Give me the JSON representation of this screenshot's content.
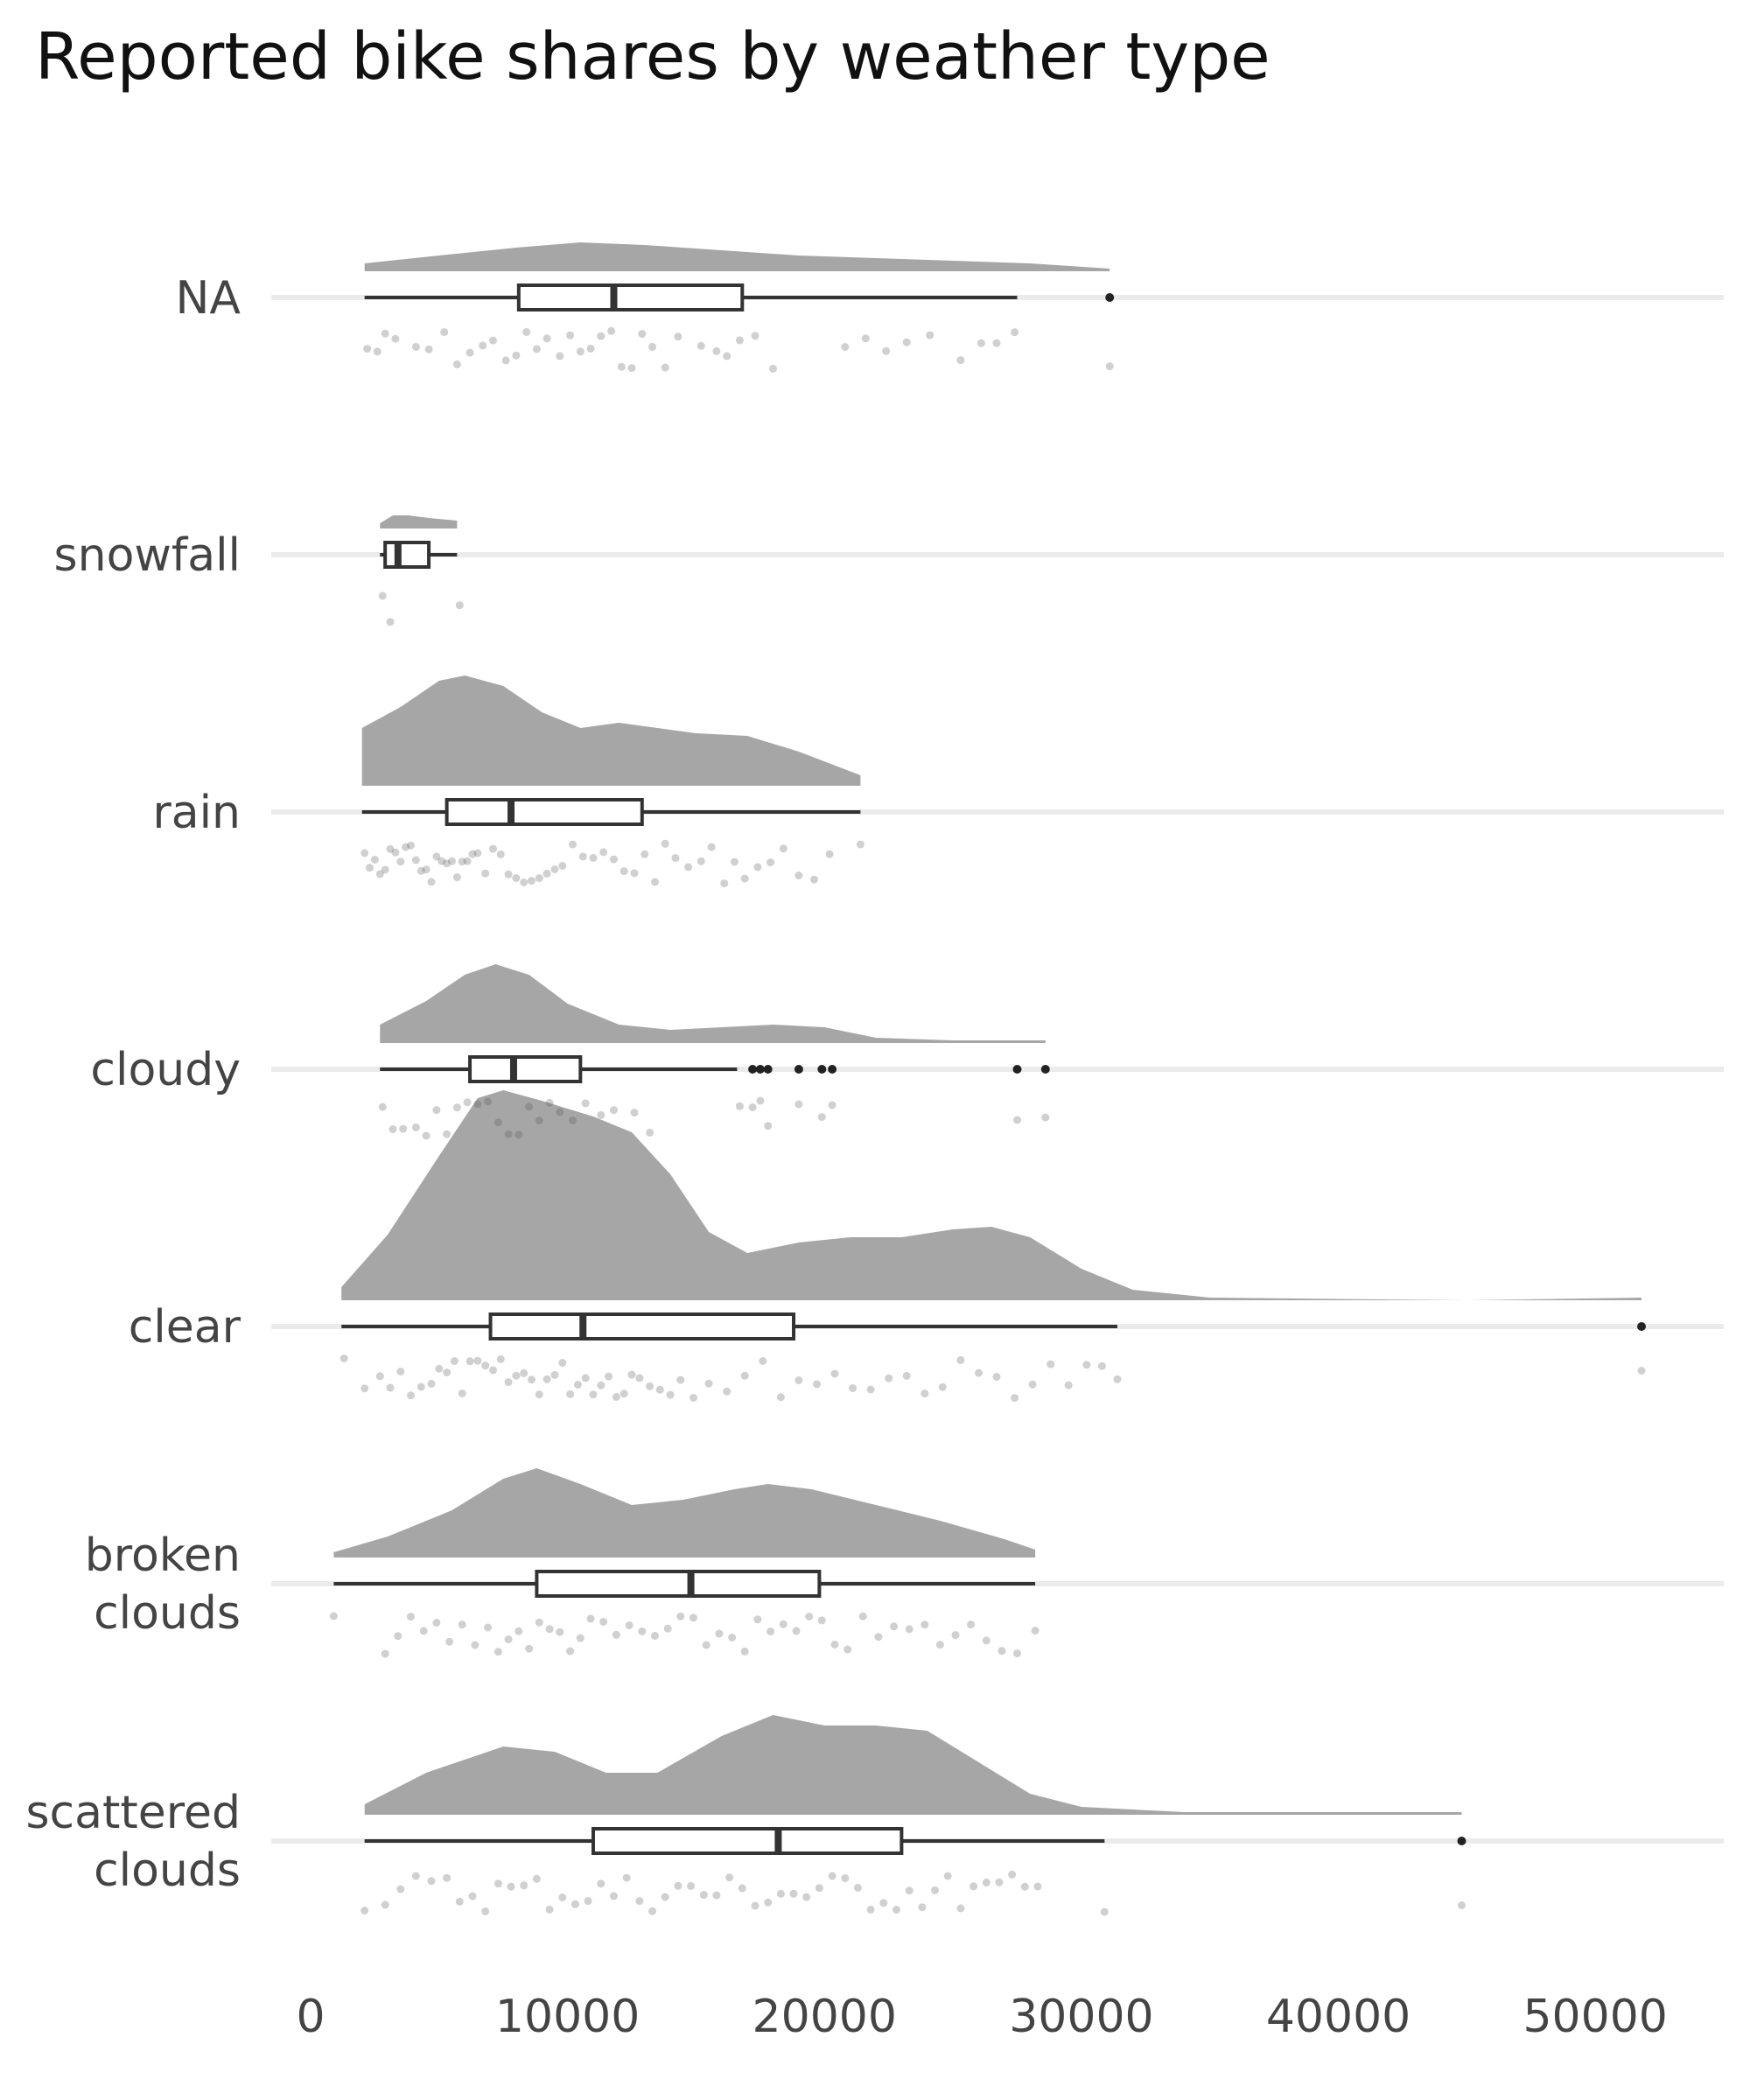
{
  "chart_data": {
    "type": "raincloud",
    "title": "Reported bike shares by weather type",
    "xlabel": "",
    "ylabel": "",
    "xlim": [
      0,
      55000
    ],
    "x_ticks": [
      0,
      10000,
      20000,
      30000,
      40000,
      50000
    ],
    "x_tick_labels": [
      "0",
      "10000",
      "20000",
      "30000",
      "40000",
      "50000"
    ],
    "grid": "horizontal lines at each category",
    "legend": "none",
    "colors": {
      "density": "#a6a6a6",
      "box": "#333333",
      "points": "#555555",
      "grid": "#ebebeb",
      "text": "#444444"
    },
    "series": [
      {
        "category": [
          "NA"
        ],
        "min": 2100,
        "q1": 8100,
        "median": 11800,
        "q3": 16800,
        "whisker_high": 27500,
        "outliers": [
          31100
        ],
        "density": [
          [
            2100,
            0.03
          ],
          [
            5000,
            0.06
          ],
          [
            8000,
            0.09
          ],
          [
            10500,
            0.11
          ],
          [
            13000,
            0.1
          ],
          [
            16000,
            0.08
          ],
          [
            19000,
            0.06
          ],
          [
            22000,
            0.05
          ],
          [
            25000,
            0.04
          ],
          [
            28000,
            0.03
          ],
          [
            31100,
            0.01
          ]
        ],
        "points": [
          2200,
          2600,
          2900,
          3300,
          4100,
          4600,
          5200,
          5700,
          6200,
          6700,
          7100,
          7600,
          8000,
          8400,
          8800,
          9200,
          9700,
          10100,
          10500,
          10900,
          11300,
          11700,
          12100,
          12500,
          12900,
          13300,
          13800,
          14300,
          15200,
          15800,
          16200,
          16700,
          17300,
          18000,
          20800,
          21600,
          22400,
          23200,
          24100,
          25300,
          26100,
          26700,
          27400,
          31100
        ]
      },
      {
        "category": [
          "snowfall"
        ],
        "min": 2700,
        "q1": 2900,
        "median": 3400,
        "q3": 4600,
        "whisker_high": 5700,
        "outliers": [],
        "density": [
          [
            2700,
            0.02
          ],
          [
            3200,
            0.05
          ],
          [
            3800,
            0.05
          ],
          [
            4600,
            0.04
          ],
          [
            5700,
            0.03
          ]
        ],
        "points": [
          2800,
          3100,
          5800
        ]
      },
      {
        "category": [
          "rain"
        ],
        "min": 2000,
        "q1": 5300,
        "median": 7800,
        "q3": 12900,
        "whisker_high": 21400,
        "outliers": [],
        "density": [
          [
            2000,
            0.22
          ],
          [
            3500,
            0.3
          ],
          [
            5000,
            0.4
          ],
          [
            6000,
            0.42
          ],
          [
            7500,
            0.38
          ],
          [
            9000,
            0.28
          ],
          [
            10500,
            0.22
          ],
          [
            12000,
            0.24
          ],
          [
            13500,
            0.22
          ],
          [
            15000,
            0.2
          ],
          [
            17000,
            0.19
          ],
          [
            19000,
            0.13
          ],
          [
            21400,
            0.04
          ]
        ],
        "points": [
          2100,
          2300,
          2500,
          2700,
          2900,
          3100,
          3300,
          3500,
          3700,
          3900,
          4100,
          4300,
          4500,
          4700,
          4900,
          5100,
          5300,
          5500,
          5700,
          5900,
          6100,
          6300,
          6500,
          6800,
          7100,
          7400,
          7700,
          8000,
          8300,
          8600,
          8900,
          9200,
          9500,
          9800,
          10200,
          10600,
          11000,
          11400,
          11800,
          12200,
          12600,
          13000,
          13400,
          13800,
          14200,
          14700,
          15200,
          15600,
          16100,
          16500,
          16900,
          17400,
          17900,
          18400,
          19000,
          19600,
          20200,
          21400
        ]
      },
      {
        "category": [
          "cloudy"
        ],
        "min": 2700,
        "q1": 6200,
        "median": 7900,
        "q3": 10500,
        "whisker_high": 16600,
        "outliers": [
          17200,
          17500,
          17800,
          19000,
          19900,
          20300,
          27500,
          28600
        ],
        "density": [
          [
            2700,
            0.07
          ],
          [
            4500,
            0.16
          ],
          [
            6000,
            0.26
          ],
          [
            7200,
            0.3
          ],
          [
            8500,
            0.26
          ],
          [
            10000,
            0.15
          ],
          [
            12000,
            0.07
          ],
          [
            14000,
            0.05
          ],
          [
            16000,
            0.06
          ],
          [
            18000,
            0.07
          ],
          [
            20000,
            0.06
          ],
          [
            22000,
            0.02
          ],
          [
            25000,
            0.01
          ],
          [
            28600,
            0.01
          ]
        ],
        "points": [
          2800,
          3200,
          3600,
          4100,
          4500,
          4900,
          5300,
          5700,
          6100,
          6500,
          6900,
          7300,
          7700,
          8100,
          8500,
          8900,
          9300,
          9700,
          10200,
          10700,
          11300,
          11800,
          12600,
          13200,
          16700,
          17200,
          17500,
          17800,
          19000,
          19900,
          20300,
          27500,
          28600
        ]
      },
      {
        "category": [
          "clear"
        ],
        "min": 1200,
        "q1": 7000,
        "median": 10600,
        "q3": 18800,
        "whisker_high": 31400,
        "outliers": [
          51800
        ],
        "density": [
          [
            1200,
            0.05
          ],
          [
            3000,
            0.25
          ],
          [
            5000,
            0.55
          ],
          [
            6500,
            0.77
          ],
          [
            7500,
            0.8
          ],
          [
            9000,
            0.76
          ],
          [
            11000,
            0.7
          ],
          [
            12500,
            0.64
          ],
          [
            14000,
            0.48
          ],
          [
            15500,
            0.26
          ],
          [
            17000,
            0.18
          ],
          [
            19000,
            0.22
          ],
          [
            21000,
            0.24
          ],
          [
            23000,
            0.24
          ],
          [
            25000,
            0.27
          ],
          [
            26500,
            0.28
          ],
          [
            28000,
            0.24
          ],
          [
            30000,
            0.12
          ],
          [
            32000,
            0.04
          ],
          [
            35000,
            0.01
          ],
          [
            45000,
            0.0
          ],
          [
            51800,
            0.01
          ]
        ],
        "points": [
          1300,
          2100,
          2700,
          3100,
          3500,
          3900,
          4300,
          4700,
          5000,
          5300,
          5600,
          5900,
          6200,
          6500,
          6800,
          7100,
          7400,
          7700,
          8000,
          8300,
          8600,
          8900,
          9200,
          9500,
          9800,
          10100,
          10400,
          10700,
          11000,
          11300,
          11600,
          11900,
          12200,
          12500,
          12800,
          13200,
          13600,
          14000,
          14400,
          14900,
          15500,
          16200,
          16900,
          17600,
          18300,
          19000,
          19700,
          20400,
          21100,
          21800,
          22500,
          23200,
          23900,
          24600,
          25300,
          26000,
          26700,
          27400,
          28100,
          28800,
          29500,
          30200,
          30800,
          31400,
          51800
        ]
      },
      {
        "category": [
          "broken",
          "clouds"
        ],
        "min": 900,
        "q1": 8800,
        "median": 14800,
        "q3": 19800,
        "whisker_high": 28200,
        "outliers": [],
        "density": [
          [
            900,
            0.02
          ],
          [
            3000,
            0.08
          ],
          [
            5500,
            0.18
          ],
          [
            7500,
            0.3
          ],
          [
            8800,
            0.34
          ],
          [
            10500,
            0.28
          ],
          [
            12500,
            0.2
          ],
          [
            14500,
            0.22
          ],
          [
            16500,
            0.26
          ],
          [
            17800,
            0.28
          ],
          [
            19500,
            0.26
          ],
          [
            22000,
            0.2
          ],
          [
            24500,
            0.14
          ],
          [
            27000,
            0.07
          ],
          [
            28200,
            0.03
          ]
        ],
        "points": [
          900,
          2900,
          3400,
          3900,
          4400,
          4900,
          5400,
          5900,
          6400,
          6900,
          7300,
          7700,
          8100,
          8500,
          8900,
          9300,
          9700,
          10100,
          10500,
          10900,
          11400,
          11900,
          12400,
          12900,
          13400,
          13900,
          14400,
          14900,
          15400,
          15900,
          16400,
          16900,
          17400,
          17900,
          18400,
          18900,
          19400,
          19900,
          20400,
          20900,
          21500,
          22100,
          22700,
          23300,
          23900,
          24500,
          25100,
          25700,
          26300,
          26900,
          27500,
          28200
        ]
      },
      {
        "category": [
          "scattered",
          "clouds"
        ],
        "min": 2100,
        "q1": 11000,
        "median": 18200,
        "q3": 23000,
        "whisker_high": 30900,
        "outliers": [
          44800
        ],
        "density": [
          [
            2100,
            0.04
          ],
          [
            4500,
            0.16
          ],
          [
            7500,
            0.26
          ],
          [
            9500,
            0.24
          ],
          [
            11500,
            0.16
          ],
          [
            13500,
            0.16
          ],
          [
            16000,
            0.3
          ],
          [
            18000,
            0.38
          ],
          [
            20000,
            0.34
          ],
          [
            22000,
            0.34
          ],
          [
            24000,
            0.32
          ],
          [
            26000,
            0.2
          ],
          [
            28000,
            0.08
          ],
          [
            30000,
            0.03
          ],
          [
            34000,
            0.01
          ],
          [
            44800,
            0.01
          ]
        ],
        "points": [
          2100,
          2900,
          3500,
          4100,
          4700,
          5300,
          5800,
          6300,
          6800,
          7300,
          7800,
          8300,
          8800,
          9300,
          9800,
          10300,
          10800,
          11300,
          11800,
          12300,
          12800,
          13300,
          13800,
          14300,
          14800,
          15300,
          15800,
          16300,
          16800,
          17300,
          17800,
          18300,
          18800,
          19300,
          19800,
          20300,
          20800,
          21300,
          21800,
          22300,
          22800,
          23300,
          23800,
          24300,
          24800,
          25300,
          25800,
          26300,
          26800,
          27300,
          27800,
          28300,
          30900,
          44800
        ]
      }
    ]
  }
}
